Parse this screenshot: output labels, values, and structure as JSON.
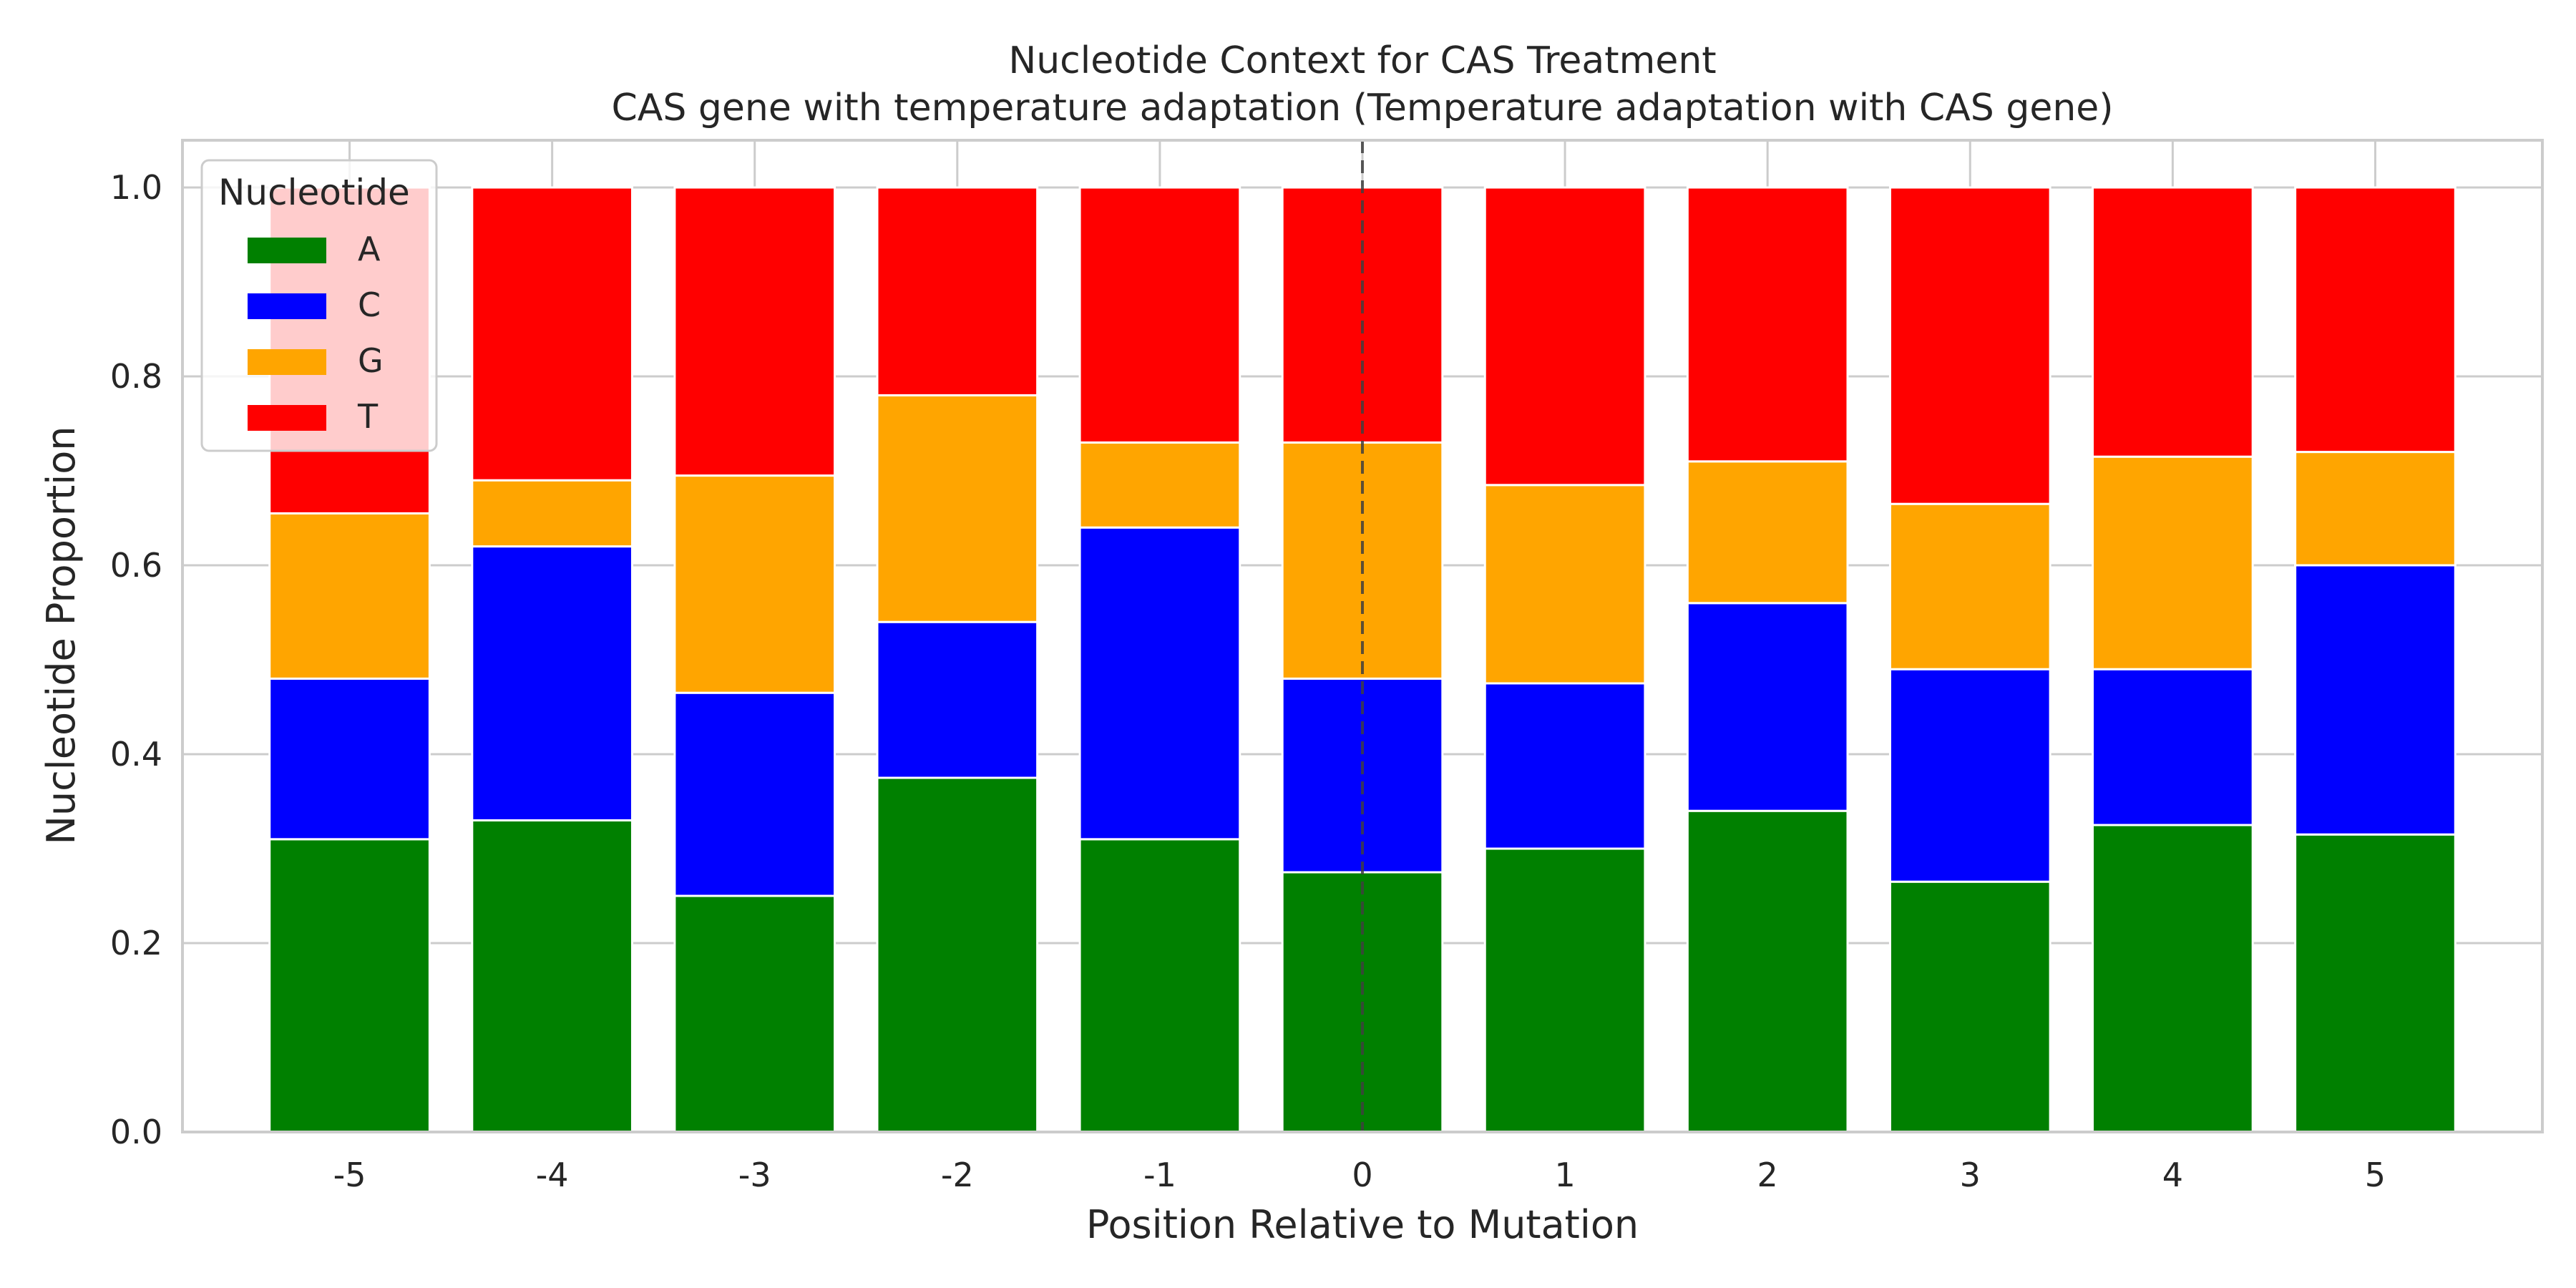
{
  "chart_data": {
    "type": "bar",
    "stacked": true,
    "title": "Nucleotide Context for CAS Treatment",
    "subtitle": "CAS gene with temperature adaptation (Temperature adaptation with CAS gene)",
    "xlabel": "Position Relative to Mutation",
    "ylabel": "Nucleotide Proportion",
    "ylim": [
      0,
      1.05
    ],
    "yticks": [
      "0.0",
      "0.2",
      "0.4",
      "0.6",
      "0.8",
      "1.0"
    ],
    "ytick_values": [
      0,
      0.2,
      0.4,
      0.6,
      0.8,
      1.0
    ],
    "categories": [
      "-5",
      "-4",
      "-3",
      "-2",
      "-1",
      "0",
      "1",
      "2",
      "3",
      "4",
      "5"
    ],
    "reference_line_x": "0",
    "grid": true,
    "legend_title": "Nucleotide",
    "legend_position": "top-left",
    "series": [
      {
        "name": "A",
        "color": "#008000",
        "values": [
          0.31,
          0.33,
          0.25,
          0.375,
          0.31,
          0.275,
          0.3,
          0.34,
          0.265,
          0.325,
          0.315
        ]
      },
      {
        "name": "C",
        "color": "#0000ff",
        "values": [
          0.17,
          0.29,
          0.215,
          0.165,
          0.33,
          0.205,
          0.175,
          0.22,
          0.225,
          0.165,
          0.285
        ]
      },
      {
        "name": "G",
        "color": "#ffa500",
        "values": [
          0.175,
          0.07,
          0.23,
          0.24,
          0.09,
          0.25,
          0.21,
          0.15,
          0.175,
          0.225,
          0.12
        ]
      },
      {
        "name": "T",
        "color": "#ff0000",
        "values": [
          0.345,
          0.31,
          0.305,
          0.22,
          0.27,
          0.27,
          0.315,
          0.29,
          0.335,
          0.285,
          0.28
        ]
      }
    ]
  }
}
